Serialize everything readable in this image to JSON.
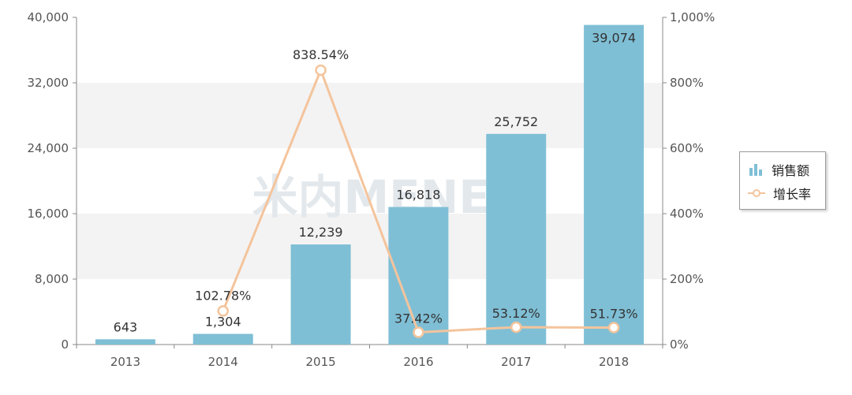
{
  "chart_data": {
    "type": "bar",
    "categories": [
      "2013",
      "2014",
      "2015",
      "2016",
      "2017",
      "2018"
    ],
    "series": [
      {
        "name": "销售额",
        "type": "bar",
        "axis": "left",
        "values": [
          643,
          1304,
          12239,
          16818,
          25752,
          39074
        ],
        "labels": [
          "643",
          "1,304",
          "12,239",
          "16,818",
          "25,752",
          "39,074"
        ]
      },
      {
        "name": "增长率",
        "type": "line",
        "axis": "right",
        "values": [
          102.78,
          838.54,
          37.42,
          53.12,
          51.73
        ],
        "x": [
          "2014",
          "2015",
          "2016",
          "2017",
          "2018"
        ],
        "labels": [
          "102.78%",
          "838.54%",
          "37.42%",
          "53.12%",
          "51.73%"
        ]
      }
    ],
    "y_left": {
      "min": 0,
      "max": 40000,
      "ticks": [
        "0",
        "8,000",
        "16,000",
        "24,000",
        "32,000",
        "40,000"
      ]
    },
    "y_right": {
      "min": 0,
      "max": 1000,
      "ticks": [
        "0%",
        "200%",
        "400%",
        "600%",
        "800%",
        "1,000%"
      ]
    },
    "grid": true,
    "legend_position": "right",
    "watermark": "米内MENET",
    "colors": {
      "bar": "#7fbfd6",
      "line": "#f4c49c",
      "band": "#f3f3f3",
      "axis": "#888888",
      "text": "#555555",
      "label": "#333333"
    }
  }
}
